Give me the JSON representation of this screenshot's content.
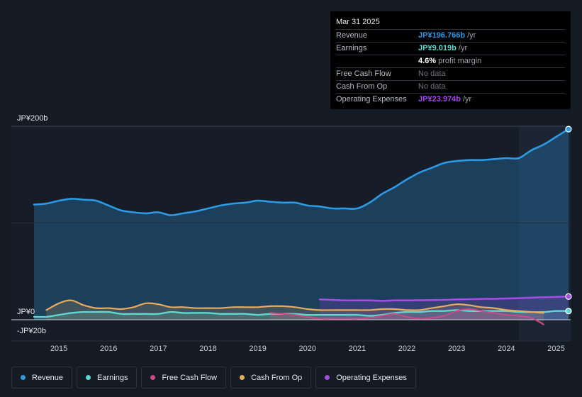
{
  "tooltip": {
    "date": "Mar 31 2025",
    "rows": [
      {
        "label": "Revenue",
        "value": "JP¥196.766b",
        "unit": " /yr",
        "color": "#2d9ae6"
      },
      {
        "label": "Earnings",
        "value": "JP¥9.019b",
        "unit": " /yr",
        "color": "#5ed8d0"
      },
      {
        "label": "",
        "value": "4.6%",
        "unit": " profit margin",
        "color": "#ffffff"
      },
      {
        "label": "Free Cash Flow",
        "value": "No data",
        "unit": "",
        "color": "#6c727b"
      },
      {
        "label": "Cash From Op",
        "value": "No data",
        "unit": "",
        "color": "#6c727b"
      },
      {
        "label": "Operating Expenses",
        "value": "JP¥23.974b",
        "unit": " /yr",
        "color": "#a64ae8"
      }
    ]
  },
  "legend": [
    {
      "label": "Revenue",
      "color": "#2d9ae6"
    },
    {
      "label": "Earnings",
      "color": "#5ed8d0"
    },
    {
      "label": "Free Cash Flow",
      "color": "#cc4a86"
    },
    {
      "label": "Cash From Op",
      "color": "#e8ac5c"
    },
    {
      "label": "Operating Expenses",
      "color": "#a64ae8"
    }
  ],
  "chart_data": {
    "type": "line",
    "title": "",
    "xlabel": "",
    "ylabel": "",
    "y_tick_labels": [
      "JP¥200b",
      "JP¥0",
      "-JP¥20b"
    ],
    "ylim": [
      -20,
      200
    ],
    "xlim": [
      2014.5,
      2025.25
    ],
    "categories": [
      "2015",
      "2016",
      "2017",
      "2018",
      "2019",
      "2020",
      "2021",
      "2022",
      "2023",
      "2024",
      "2025"
    ],
    "x_tick_values": [
      2015,
      2016,
      2017,
      2018,
      2019,
      2020,
      2021,
      2022,
      2023,
      2024,
      2025
    ],
    "highlight_start": 2024.25,
    "series": [
      {
        "name": "Revenue",
        "color": "#2d9ae6",
        "x": [
          2014.5,
          2014.75,
          2015.0,
          2015.25,
          2015.5,
          2015.75,
          2016.0,
          2016.25,
          2016.5,
          2016.75,
          2017.0,
          2017.25,
          2017.5,
          2017.75,
          2018.0,
          2018.25,
          2018.5,
          2018.75,
          2019.0,
          2019.25,
          2019.5,
          2019.75,
          2020.0,
          2020.25,
          2020.5,
          2020.75,
          2021.0,
          2021.25,
          2021.5,
          2021.75,
          2022.0,
          2022.25,
          2022.5,
          2022.75,
          2023.0,
          2023.25,
          2023.5,
          2023.75,
          2024.0,
          2024.25,
          2024.5,
          2024.75,
          2025.0,
          2025.25
        ],
        "values": [
          119,
          120,
          123,
          125,
          124,
          123,
          118,
          113,
          111,
          110,
          111,
          108,
          110,
          112,
          115,
          118,
          120,
          121,
          123,
          122,
          121,
          121,
          118,
          117,
          115,
          115,
          115,
          121,
          130,
          137,
          145,
          152,
          157,
          162,
          164,
          165,
          165,
          166,
          167,
          167,
          175,
          181,
          189,
          197
        ]
      },
      {
        "name": "Earnings",
        "color": "#5ed8d0",
        "x": [
          2014.5,
          2014.75,
          2015.0,
          2015.25,
          2015.5,
          2015.75,
          2016.0,
          2016.25,
          2016.5,
          2016.75,
          2017.0,
          2017.25,
          2017.5,
          2017.75,
          2018.0,
          2018.25,
          2018.5,
          2018.75,
          2019.0,
          2019.25,
          2019.5,
          2019.75,
          2020.0,
          2020.25,
          2020.5,
          2020.75,
          2021.0,
          2021.25,
          2021.5,
          2021.75,
          2022.0,
          2022.25,
          2022.5,
          2022.75,
          2023.0,
          2023.25,
          2023.5,
          2023.75,
          2024.0,
          2024.25,
          2024.5,
          2024.75,
          2025.0,
          2025.25
        ],
        "values": [
          3,
          3,
          5,
          7,
          8,
          8,
          8,
          6,
          6,
          6,
          6,
          8,
          7,
          7,
          7,
          6,
          6,
          6,
          5,
          6,
          6,
          6,
          5,
          5,
          5,
          5,
          5,
          4,
          5,
          7,
          8,
          8,
          9,
          9,
          10,
          9,
          9,
          9,
          9,
          8,
          8,
          8,
          9,
          9
        ]
      },
      {
        "name": "Free Cash Flow",
        "color": "#cc4a86",
        "x": [
          2019.25,
          2019.5,
          2019.75,
          2020.0,
          2020.25,
          2020.5,
          2020.75,
          2021.0,
          2021.25,
          2021.5,
          2021.75,
          2022.0,
          2022.25,
          2022.5,
          2022.75,
          2023.0,
          2023.25,
          2023.5,
          2023.75,
          2024.0,
          2024.25,
          2024.5,
          2024.75
        ],
        "values": [
          7,
          6,
          5,
          3,
          1,
          1,
          1,
          1,
          2,
          4,
          6,
          3,
          1,
          2,
          4,
          9,
          11,
          9,
          7,
          5,
          4,
          2,
          -5
        ]
      },
      {
        "name": "Cash From Op",
        "color": "#e8ac5c",
        "x": [
          2014.75,
          2015.0,
          2015.25,
          2015.5,
          2015.75,
          2016.0,
          2016.25,
          2016.5,
          2016.75,
          2017.0,
          2017.25,
          2017.5,
          2017.75,
          2018.0,
          2018.25,
          2018.5,
          2018.75,
          2019.0,
          2019.25,
          2019.5,
          2019.75,
          2020.0,
          2020.25,
          2020.5,
          2020.75,
          2021.0,
          2021.25,
          2021.5,
          2021.75,
          2022.0,
          2022.25,
          2022.5,
          2022.75,
          2023.0,
          2023.25,
          2023.5,
          2023.75,
          2024.0,
          2024.25,
          2024.5,
          2024.75
        ],
        "values": [
          10,
          17,
          20,
          15,
          12,
          12,
          11,
          13,
          17,
          16,
          13,
          13,
          12,
          12,
          12,
          13,
          13,
          13,
          14,
          14,
          13,
          11,
          10,
          10,
          10,
          10,
          10,
          11,
          11,
          10,
          10,
          12,
          14,
          16,
          15,
          13,
          12,
          10,
          9,
          8,
          7
        ]
      },
      {
        "name": "Operating Expenses",
        "color": "#a64ae8",
        "x": [
          2020.25,
          2020.5,
          2020.75,
          2021.0,
          2021.25,
          2021.5,
          2021.75,
          2022.0,
          2022.25,
          2022.5,
          2022.75,
          2023.0,
          2023.25,
          2023.5,
          2023.75,
          2024.0,
          2024.25,
          2024.5,
          2024.75,
          2025.0,
          2025.25
        ],
        "values": [
          21,
          20.5,
          20,
          20,
          20,
          19.5,
          20,
          20,
          20.2,
          20.3,
          20.5,
          21,
          21.2,
          21.5,
          21.7,
          22,
          22.3,
          22.8,
          23.2,
          23.6,
          24
        ]
      }
    ]
  }
}
